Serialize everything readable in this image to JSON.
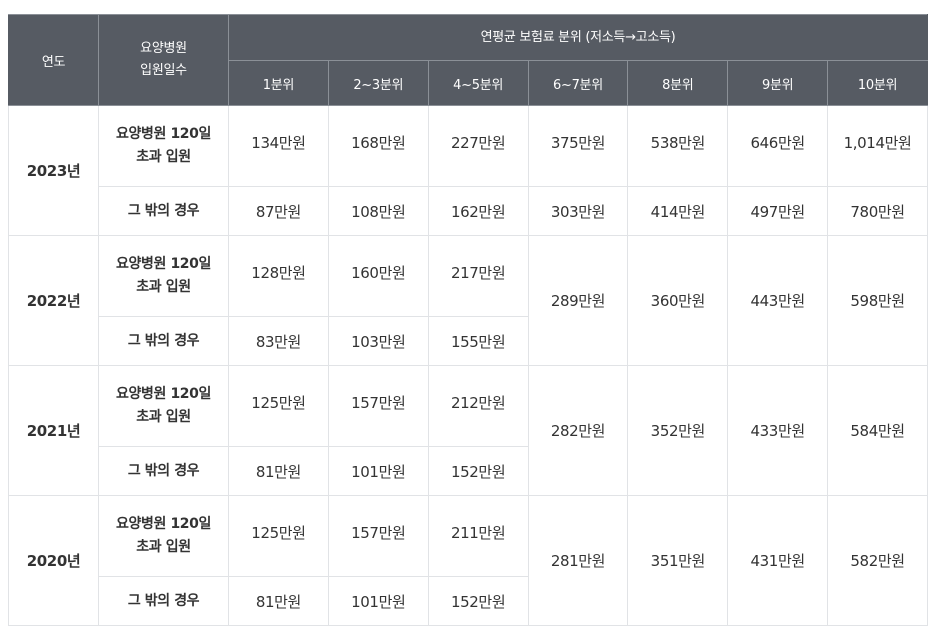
{
  "header": {
    "year_label": "연도",
    "days_label_line1": "요양병원",
    "days_label_line2": "입원일수",
    "group_label": "연평균 보험료 분위 (저소득→고소득)",
    "columns": [
      "1분위",
      "2~3분위",
      "4~5분위",
      "6~7분위",
      "8분위",
      "9분위",
      "10분위"
    ]
  },
  "row_labels": {
    "over120_line1": "요양병원 120일",
    "over120_line2": "초과 입원",
    "other": "그 밖의 경우"
  },
  "rows": [
    {
      "year": "2023년",
      "over120": [
        "134만원",
        "168만원",
        "227만원",
        "375만원",
        "538만원",
        "646만원",
        "1,014만원"
      ],
      "other": [
        "87만원",
        "108만원",
        "162만원",
        "303만원",
        "414만원",
        "497만원",
        "780만원"
      ]
    },
    {
      "year": "2022년",
      "over120": [
        "128만원",
        "160만원",
        "217만원"
      ],
      "other": [
        "83만원",
        "103만원",
        "155만원"
      ],
      "shared": [
        "289만원",
        "360만원",
        "443만원",
        "598만원"
      ]
    },
    {
      "year": "2021년",
      "over120": [
        "125만원",
        "157만원",
        "212만원"
      ],
      "other": [
        "81만원",
        "101만원",
        "152만원"
      ],
      "shared": [
        "282만원",
        "352만원",
        "433만원",
        "584만원"
      ]
    },
    {
      "year": "2020년",
      "over120": [
        "125만원",
        "157만원",
        "211만원"
      ],
      "other": [
        "81만원",
        "101만원",
        "152만원"
      ],
      "shared": [
        "281만원",
        "351만원",
        "431만원",
        "582만원"
      ]
    }
  ]
}
